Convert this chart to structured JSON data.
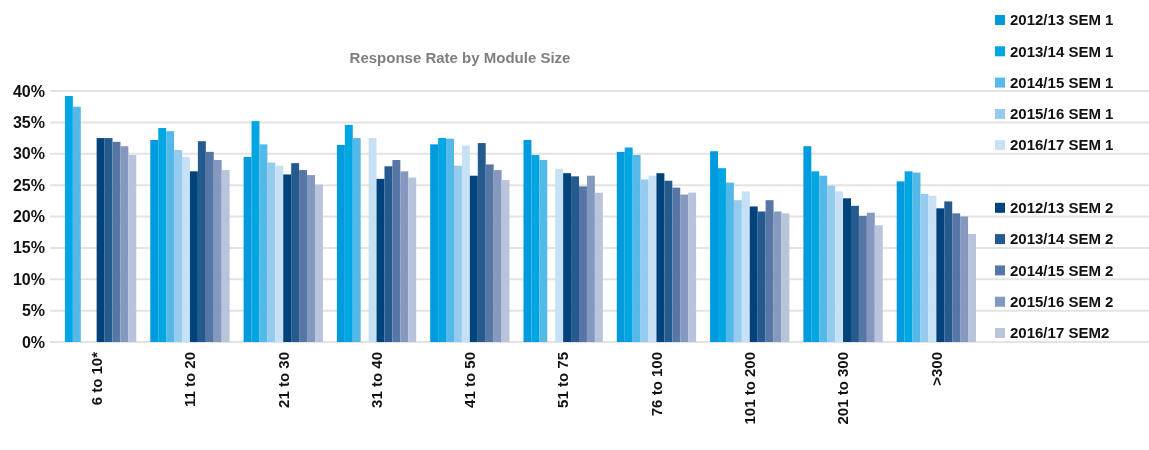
{
  "chart_data": {
    "type": "bar",
    "title": "Response Rate by Module Size",
    "categories": [
      "6 to 10*",
      "11 to 20",
      "21 to 30",
      "31 to 40",
      "41 to 50",
      "51 to 75",
      "76 to 100",
      "101 to 200",
      "201 to 300",
      ">300"
    ],
    "series": [
      {
        "name": "2012/13 SEM 1",
        "color": "#009ade",
        "values": [
          null,
          32.2,
          29.5,
          31.4,
          31.5,
          32.2,
          30.3,
          30.4,
          31.2,
          25.6
        ]
      },
      {
        "name": "2013/14 SEM 1",
        "color": "#00a6e2",
        "values": [
          39.2,
          34.1,
          35.2,
          34.6,
          32.5,
          29.8,
          31.0,
          27.7,
          27.2,
          27.2
        ]
      },
      {
        "name": "2014/15 SEM 1",
        "color": "#54b8e8",
        "values": [
          37.5,
          33.6,
          31.5,
          32.5,
          32.4,
          29.0,
          29.8,
          25.4,
          26.5,
          27.0
        ]
      },
      {
        "name": "2015/16 SEM 1",
        "color": "#94cbee",
        "values": [
          null,
          30.6,
          28.6,
          null,
          28.1,
          null,
          25.9,
          22.6,
          24.9,
          23.6
        ]
      },
      {
        "name": "2016/17 SEM 1",
        "color": "#c6e1f6",
        "values": [
          null,
          29.5,
          28.1,
          32.5,
          31.3,
          27.6,
          26.5,
          24.0,
          24.0,
          23.3
        ]
      },
      {
        "name": "2012/13 SEM 2",
        "color": "#00427a",
        "values": [
          32.5,
          27.2,
          26.7,
          26.0,
          26.5,
          26.9,
          26.9,
          21.6,
          22.9,
          21.3
        ]
      },
      {
        "name": "2013/14 SEM 2",
        "color": "#255a8e",
        "values": [
          32.5,
          32.0,
          28.5,
          28.0,
          31.7,
          26.4,
          25.7,
          20.8,
          21.7,
          22.4
        ]
      },
      {
        "name": "2014/15 SEM 2",
        "color": "#5676a5",
        "values": [
          31.9,
          30.3,
          27.4,
          29.0,
          28.3,
          24.8,
          24.6,
          22.6,
          20.1,
          20.5
        ]
      },
      {
        "name": "2015/16 SEM 2",
        "color": "#8598c0",
        "values": [
          31.2,
          29.0,
          26.6,
          27.2,
          27.4,
          26.5,
          23.5,
          20.8,
          20.6,
          20.0
        ]
      },
      {
        "name": "2016/17 SEM2",
        "color": "#b8c3dc",
        "values": [
          29.8,
          27.4,
          25.1,
          26.2,
          25.8,
          23.8,
          23.8,
          20.5,
          18.6,
          17.2
        ]
      }
    ],
    "ylim": [
      0,
      40
    ],
    "yticks": [
      {
        "value": 0,
        "label": "0%"
      },
      {
        "value": 5,
        "label": "5%"
      },
      {
        "value": 10,
        "label": "10%"
      },
      {
        "value": 15,
        "label": "15%"
      },
      {
        "value": 20,
        "label": "20%"
      },
      {
        "value": 25,
        "label": "25%"
      },
      {
        "value": 30,
        "label": "30%"
      },
      {
        "value": 35,
        "label": "35%"
      },
      {
        "value": 40,
        "label": "40%"
      }
    ],
    "grid": "y",
    "legend": "top right"
  }
}
